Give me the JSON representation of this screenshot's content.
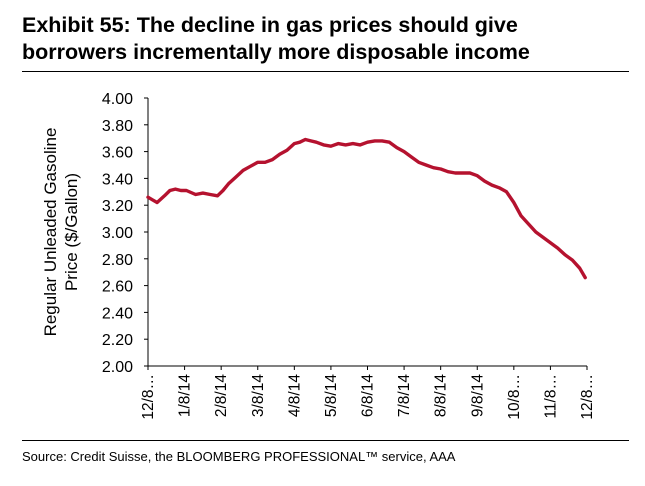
{
  "title": {
    "line1": "Exhibit 55: The decline in gas prices should give",
    "line2": "borrowers incrementally more disposable income"
  },
  "source": "Source: Credit Suisse, the BLOOMBERG PROFESSIONAL™ service, AAA",
  "colors": {
    "series": "#B5122F",
    "axis": "#000000",
    "text": "#000000"
  },
  "chart_data": {
    "type": "line",
    "title": "Exhibit 55: The decline in gas prices should give borrowers incrementally more disposable income",
    "xlabel": "",
    "ylabel": "Regular Unleaded Gasoline Price ($/Gallon)",
    "ylabel_lines": [
      "Regular Unleaded Gasoline",
      "Price ($/Gallon)"
    ],
    "ylim": [
      2.0,
      4.0
    ],
    "yticks": [
      2.0,
      2.2,
      2.4,
      2.6,
      2.8,
      3.0,
      3.2,
      3.4,
      3.6,
      3.8,
      4.0
    ],
    "ytick_labels": [
      "2.00",
      "2.20",
      "2.40",
      "2.60",
      "2.80",
      "3.00",
      "3.20",
      "3.40",
      "3.60",
      "3.80",
      "4.00"
    ],
    "xlim": [
      0,
      12.0
    ],
    "xticks": [
      0,
      1,
      2,
      3,
      4,
      5,
      6,
      7,
      8,
      9,
      10,
      11,
      12
    ],
    "xtick_labels": [
      "12/8…",
      "1/8/14",
      "2/8/14",
      "3/8/14",
      "4/8/14",
      "5/8/14",
      "6/8/14",
      "7/8/14",
      "8/8/14",
      "9/8/14",
      "10/8…",
      "11/8…",
      "12/8…"
    ],
    "grid": false,
    "legend": "none",
    "series": [
      {
        "name": "Regular Unleaded Gasoline Price",
        "x": [
          0,
          0.12,
          0.25,
          0.45,
          0.6,
          0.75,
          0.9,
          1.05,
          1.3,
          1.5,
          1.7,
          1.9,
          2.05,
          2.2,
          2.4,
          2.6,
          2.8,
          3.0,
          3.2,
          3.4,
          3.6,
          3.8,
          4.0,
          4.15,
          4.3,
          4.45,
          4.6,
          4.8,
          5.0,
          5.2,
          5.4,
          5.6,
          5.8,
          6.0,
          6.2,
          6.4,
          6.6,
          6.8,
          7.0,
          7.2,
          7.4,
          7.6,
          7.8,
          8.0,
          8.2,
          8.4,
          8.6,
          8.8,
          9.0,
          9.2,
          9.4,
          9.6,
          9.8,
          10.0,
          10.2,
          10.4,
          10.6,
          10.8,
          11.0,
          11.2,
          11.4,
          11.6,
          11.8,
          11.95
        ],
        "values": [
          3.26,
          3.24,
          3.22,
          3.27,
          3.31,
          3.32,
          3.31,
          3.31,
          3.28,
          3.29,
          3.28,
          3.27,
          3.31,
          3.36,
          3.41,
          3.46,
          3.49,
          3.52,
          3.52,
          3.54,
          3.58,
          3.61,
          3.66,
          3.67,
          3.69,
          3.68,
          3.67,
          3.65,
          3.64,
          3.66,
          3.65,
          3.66,
          3.65,
          3.67,
          3.68,
          3.68,
          3.67,
          3.63,
          3.6,
          3.56,
          3.52,
          3.5,
          3.48,
          3.47,
          3.45,
          3.44,
          3.44,
          3.44,
          3.42,
          3.38,
          3.35,
          3.33,
          3.3,
          3.22,
          3.12,
          3.06,
          3.0,
          2.96,
          2.92,
          2.88,
          2.83,
          2.79,
          2.73,
          2.66
        ]
      }
    ]
  }
}
